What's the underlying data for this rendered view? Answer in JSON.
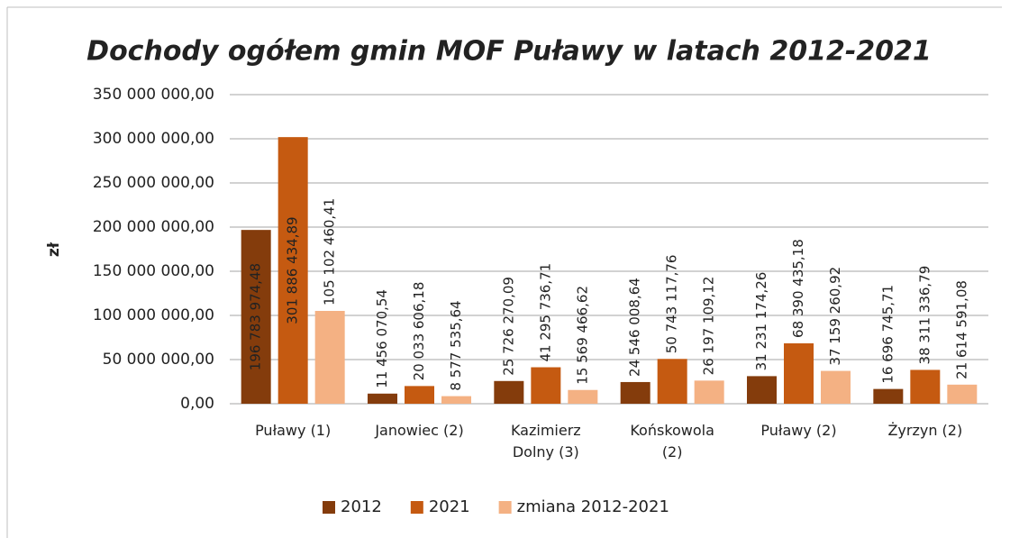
{
  "chart_data": {
    "type": "bar",
    "title": "Dochody ogółem gmin MOF Puławy w latach 2012-2021",
    "y_label": "zł",
    "categories": [
      "Puławy (1)",
      "Janowiec (2)",
      "Kazimierz Dolny (3)",
      "Końskowola (2)",
      "Puławy (2)",
      "Żyrzyn (2)"
    ],
    "series": [
      {
        "name": "2012",
        "color": "#843c0c",
        "values": [
          196783974.48,
          11456070.54,
          25726270.09,
          24546008.64,
          31231174.26,
          16696745.71
        ],
        "value_labels": [
          "196 783 974,48",
          "11 456 070,54",
          "25 726 270,09",
          "24 546 008,64",
          "31 231 174,26",
          "16 696 745,71"
        ]
      },
      {
        "name": "2021",
        "color": "#c55a11",
        "values": [
          301886434.89,
          20033606.18,
          41295736.71,
          50743117.76,
          68390435.18,
          38311336.79
        ],
        "value_labels": [
          "301 886 434,89",
          "20 033 606,18",
          "41 295 736,71",
          "50 743 117,76",
          "68 390 435,18",
          "38 311 336,79"
        ]
      },
      {
        "name": "zmiana 2012-2021",
        "color": "#f4b183",
        "values": [
          105102460.41,
          8577535.64,
          15569466.62,
          26197109.12,
          37159260.92,
          21614591.08
        ],
        "value_labels": [
          "105 102 460,41",
          "8 577 535,64",
          "15 569 466,62",
          "26 197 109,12",
          "37 159 260,92",
          "21 614 591,08"
        ]
      }
    ],
    "ylim": [
      0,
      350000000
    ],
    "yticks": [
      {
        "value": 0,
        "label": "0,00"
      },
      {
        "value": 50000000,
        "label": "50 000 000,00"
      },
      {
        "value": 100000000,
        "label": "100 000 000,00"
      },
      {
        "value": 150000000,
        "label": "150 000 000,00"
      },
      {
        "value": 200000000,
        "label": "200 000 000,00"
      },
      {
        "value": 250000000,
        "label": "250 000 000,00"
      },
      {
        "value": 300000000,
        "label": "300 000 000,00"
      },
      {
        "value": 350000000,
        "label": "350 000 000,00"
      }
    ],
    "grid": true,
    "legend": "bottom"
  }
}
